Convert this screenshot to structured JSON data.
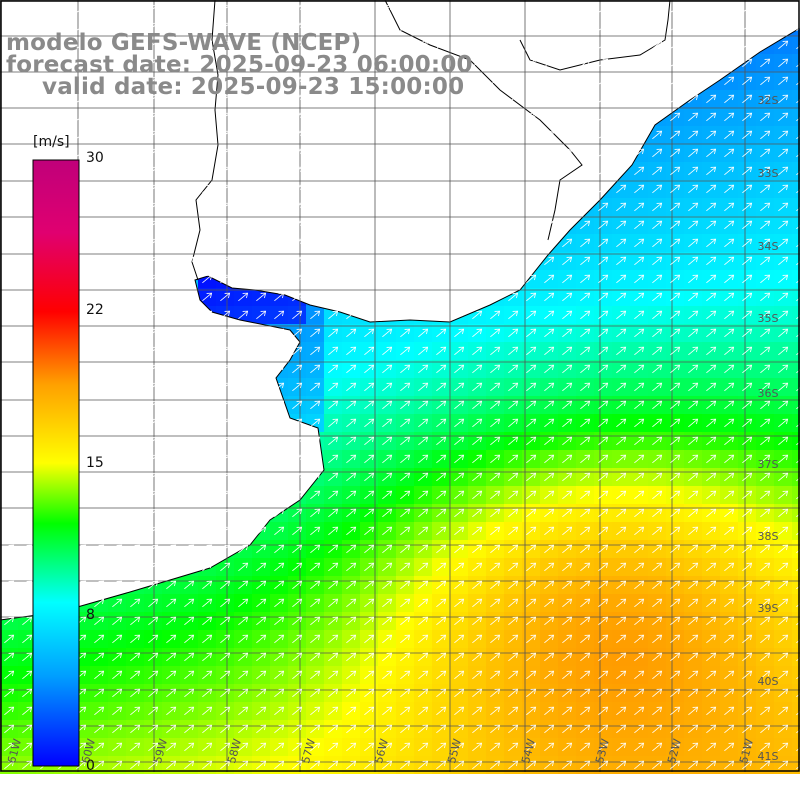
{
  "title": {
    "line1": "modelo GEFS-WAVE (NCEP)",
    "line2": "forecast date: 2025-09-23 06:00:00",
    "line3": "valid date: 2025-09-23 15:00:00"
  },
  "colorbar": {
    "unit": "[m/s]",
    "ticks": [
      "30",
      "22",
      "15",
      "8",
      "0"
    ],
    "tick_values": [
      30,
      22,
      15,
      8,
      0
    ],
    "range": [
      0,
      30
    ]
  },
  "latitude_labels": [
    "32S",
    "33S",
    "34S",
    "35S",
    "36S",
    "37S",
    "38S",
    "39S",
    "40S",
    "41S"
  ],
  "longitude_labels": [
    "61W",
    "60W",
    "59W",
    "58W",
    "57W",
    "56W",
    "55W",
    "54W",
    "53W",
    "52W",
    "51W"
  ],
  "colors": {
    "land": "#ffffff",
    "grid": "#666666",
    "coast": "#000000",
    "arrows": "#ffffff",
    "title": "#8a8a8a"
  }
}
